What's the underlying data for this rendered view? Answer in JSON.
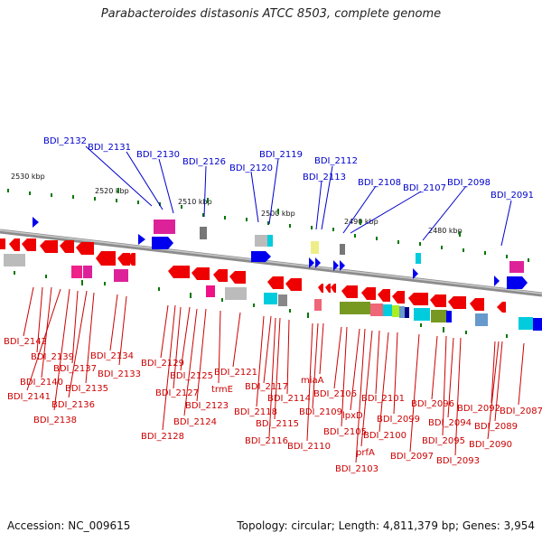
{
  "title": "Parabacteroides distasonis ATCC 8503, complete genome",
  "footer": {
    "accession": "Accession: NC_009615",
    "topology": "Topology: circular; Length: 4,811,379 bp; Genes: 3,954"
  },
  "scale_labels": [
    "2530 kbp",
    "2520 kbp",
    "2510 kbp",
    "2500 kbp",
    "2490 kbp",
    "2480 kbp"
  ],
  "colors": {
    "forward_label": "#0000cc",
    "reverse_label": "#cc0000",
    "backbone": "#8c8c8c",
    "forward_gene": "#0000ee",
    "reverse_gene": "#ee0000",
    "tick": "#007700"
  },
  "top_labels": [
    "BDI_2132",
    "BDI_2131",
    "BDI_2130",
    "BDI_2126",
    "BDI_2120",
    "BDI_2119",
    "BDI_2113",
    "BDI_2112",
    "BDI_2108",
    "BDI_2107",
    "BDI_2098",
    "BDI_2091"
  ],
  "bottom_labels": [
    "BDI_2142",
    "BDI_2139",
    "BDI_2140",
    "BDI_2141",
    "BDI_2138",
    "BDI_2137",
    "BDI_2136",
    "BDI_2135",
    "BDI_2134",
    "BDI_2133",
    "BDI_2129",
    "BDI_2128",
    "BDI_2127",
    "BDI_2125",
    "BDI_2124",
    "BDI_2123",
    "trmE",
    "BDI_2121",
    "BDI_2118",
    "BDI_2117",
    "BDI_2116",
    "BDI_2115",
    "BDI_2114",
    "BDI_2110",
    "BDI_2109",
    "miaA",
    "BDI_2106",
    "BDI_2105",
    "lpxD",
    "BDI_2103",
    "prfA",
    "BDI_2101",
    "BDI_2100",
    "BDI_2099",
    "BDI_2097",
    "BDI_2096",
    "BDI_2095",
    "BDI_2094",
    "BDI_2093",
    "BDI_2092",
    "BDI_2090",
    "BDI_2089",
    "BDI_2087"
  ]
}
